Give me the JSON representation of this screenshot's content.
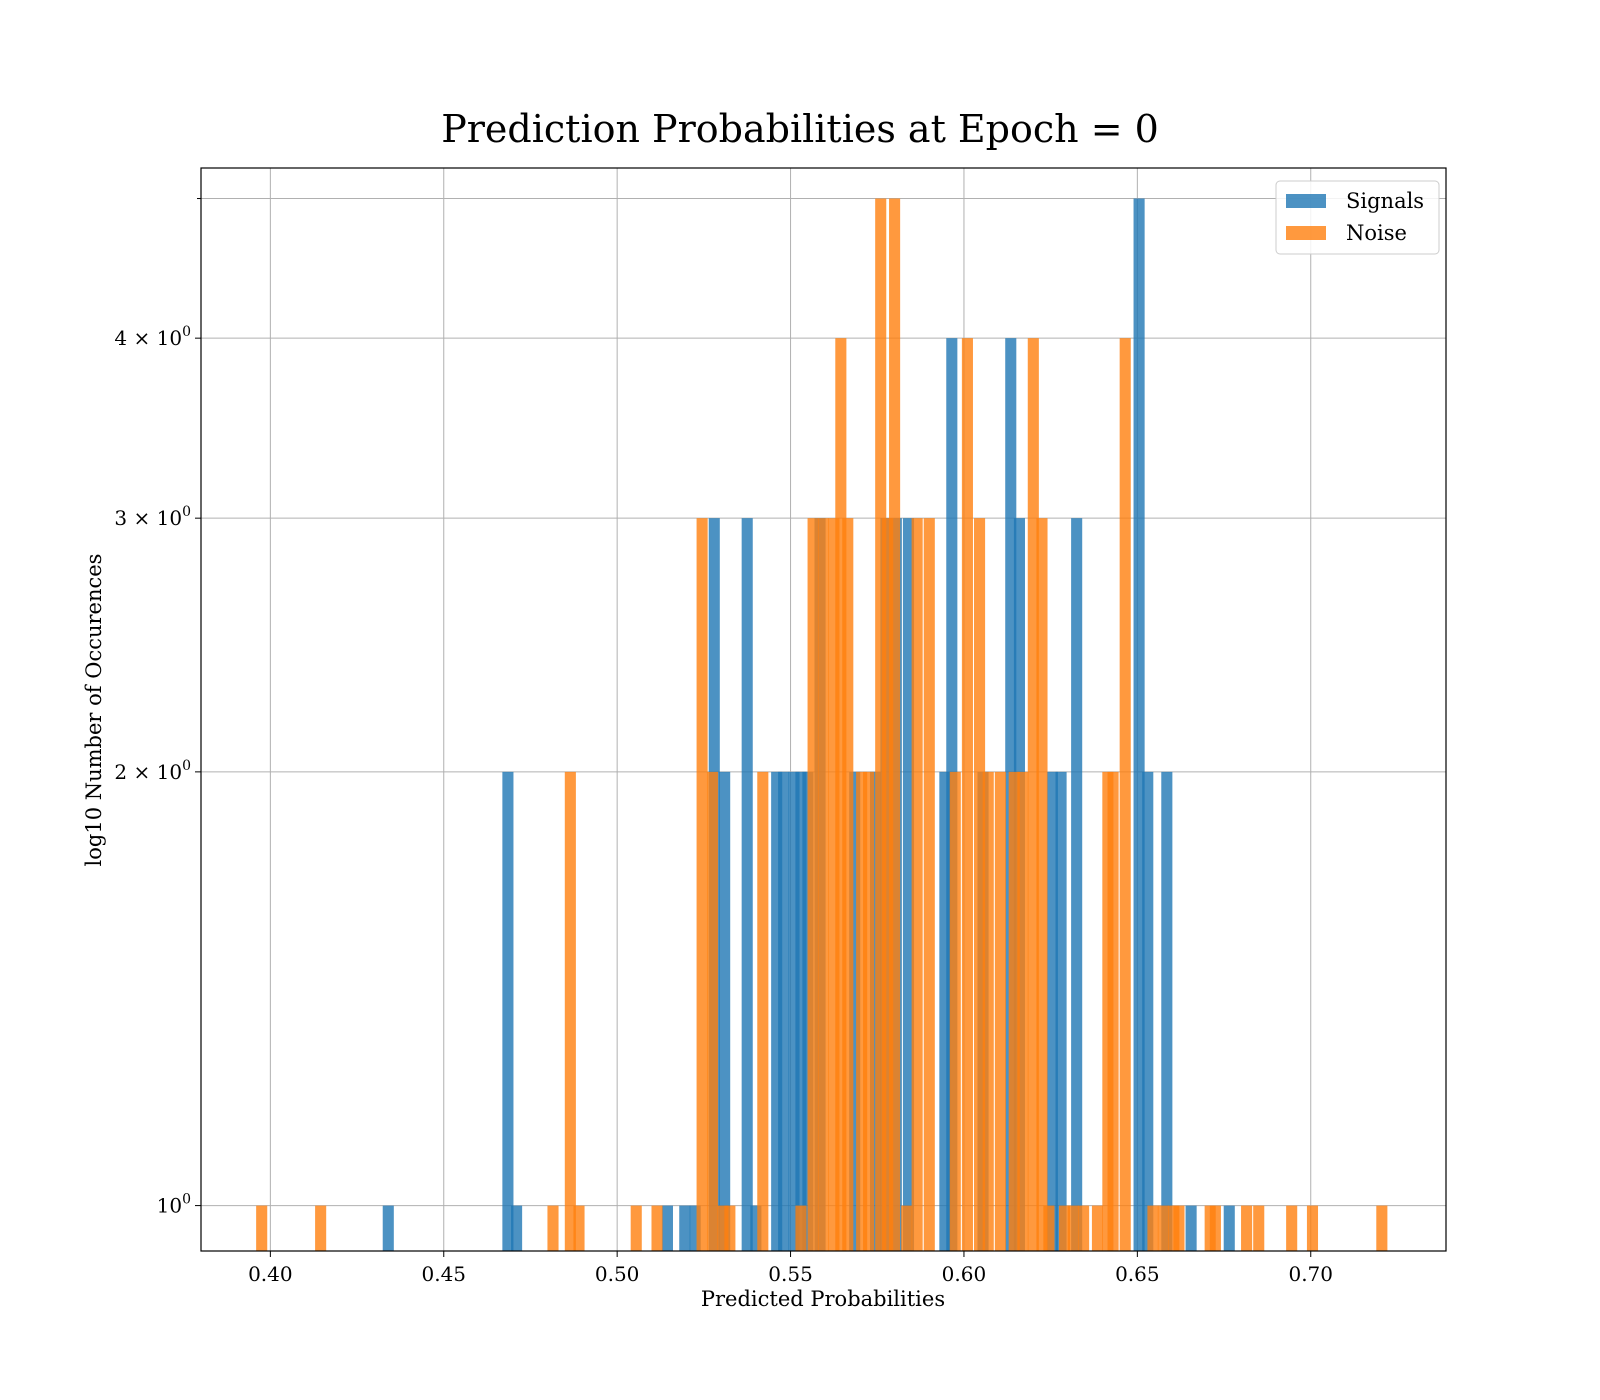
{
  "chart_data": {
    "type": "bar",
    "title": "Prediction Probabilities at Epoch = 0",
    "xlabel": "Predicted Probabilities",
    "ylabel": "log10 Number of Occurences",
    "xlim": [
      0.38,
      0.739
    ],
    "ylim": [
      0.93,
      5.25
    ],
    "yscale": "log",
    "grid": true,
    "legend_position": "top-right",
    "bin_width": 0.0032,
    "x_ticks": [
      {
        "value": 0.4,
        "label": "0.40"
      },
      {
        "value": 0.45,
        "label": "0.45"
      },
      {
        "value": 0.5,
        "label": "0.50"
      },
      {
        "value": 0.55,
        "label": "0.55"
      },
      {
        "value": 0.6,
        "label": "0.60"
      },
      {
        "value": 0.65,
        "label": "0.65"
      },
      {
        "value": 0.7,
        "label": "0.70"
      }
    ],
    "y_ticks": [
      {
        "value": 1,
        "base": "10",
        "exp": "0"
      },
      {
        "value": 2,
        "base": "2 × 10",
        "exp": "0"
      },
      {
        "value": 3,
        "base": "3 × 10",
        "exp": "0"
      },
      {
        "value": 4,
        "base": "4 × 10",
        "exp": "0"
      }
    ],
    "series": [
      {
        "name": "Signals",
        "color": "#1f77b4",
        "x": [
          0.434,
          0.4685,
          0.471,
          0.5145,
          0.5195,
          0.5225,
          0.528,
          0.531,
          0.5375,
          0.54,
          0.546,
          0.548,
          0.551,
          0.553,
          0.555,
          0.5585,
          0.5685,
          0.5745,
          0.5775,
          0.5805,
          0.584,
          0.5945,
          0.5965,
          0.6055,
          0.6135,
          0.616,
          0.6255,
          0.628,
          0.6325,
          0.6505,
          0.653,
          0.6585,
          0.6655,
          0.6765
        ],
        "values": [
          1,
          2,
          1,
          1,
          1,
          1,
          3,
          2,
          3,
          1,
          2,
          2,
          2,
          2,
          2,
          3,
          2,
          2,
          3,
          3,
          3,
          2,
          4,
          2,
          4,
          3,
          2,
          2,
          3,
          5,
          2,
          2,
          1,
          1
        ]
      },
      {
        "name": "Noise",
        "color": "#ff7f0e",
        "x": [
          0.3975,
          0.4145,
          0.4815,
          0.4865,
          0.489,
          0.5055,
          0.5115,
          0.5245,
          0.5275,
          0.5305,
          0.5325,
          0.542,
          0.553,
          0.5565,
          0.5595,
          0.5625,
          0.5645,
          0.5665,
          0.5705,
          0.5725,
          0.576,
          0.578,
          0.58,
          0.5835,
          0.5865,
          0.59,
          0.5975,
          0.601,
          0.6045,
          0.607,
          0.6105,
          0.6145,
          0.617,
          0.62,
          0.6225,
          0.6245,
          0.629,
          0.6315,
          0.6345,
          0.6385,
          0.6415,
          0.643,
          0.6465,
          0.6545,
          0.6575,
          0.6605,
          0.662,
          0.671,
          0.6725,
          0.6815,
          0.685,
          0.6945,
          0.7005,
          0.7205
        ],
        "values": [
          1,
          1,
          1,
          2,
          1,
          1,
          1,
          3,
          2,
          1,
          1,
          2,
          1,
          3,
          3,
          3,
          4,
          3,
          2,
          2,
          5,
          3,
          5,
          1,
          3,
          3,
          2,
          4,
          3,
          2,
          2,
          2,
          2,
          4,
          3,
          1,
          1,
          1,
          1,
          1,
          2,
          2,
          4,
          1,
          1,
          1,
          1,
          1,
          1,
          1,
          1,
          1,
          1,
          1
        ]
      }
    ]
  }
}
